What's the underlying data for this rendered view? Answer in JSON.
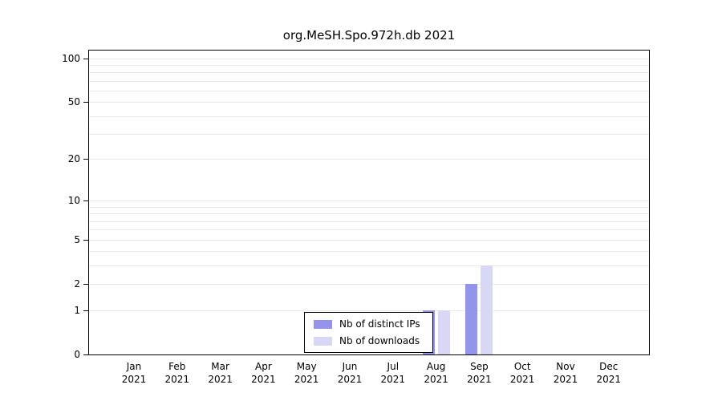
{
  "chart_data": {
    "type": "bar",
    "title": "org.MeSH.Spo.972h.db 2021",
    "categories": [
      "Jan 2021",
      "Feb 2021",
      "Mar 2021",
      "Apr 2021",
      "May 2021",
      "Jun 2021",
      "Jul 2021",
      "Aug 2021",
      "Sep 2021",
      "Oct 2021",
      "Nov 2021",
      "Dec 2021"
    ],
    "series": [
      {
        "name": "Nb of distinct IPs",
        "color": "#9494ec",
        "values": [
          0,
          0,
          0,
          0,
          0,
          0,
          0,
          1,
          2,
          0,
          0,
          0
        ]
      },
      {
        "name": "Nb of downloads",
        "color": "#d8d8f6",
        "values": [
          0,
          0,
          0,
          0,
          0,
          0,
          0,
          1,
          3,
          0,
          0,
          0
        ]
      }
    ],
    "xlabel": "",
    "ylabel": "",
    "yticks": [
      0,
      1,
      2,
      5,
      10,
      20,
      50,
      100
    ],
    "ymax": 113,
    "scale": "log1p",
    "grid": true,
    "legend_position": "bottom-center",
    "colors": {
      "grid": "#eaeaea",
      "axis": "#000000",
      "background": "#ffffff",
      "text": "#000000"
    }
  }
}
